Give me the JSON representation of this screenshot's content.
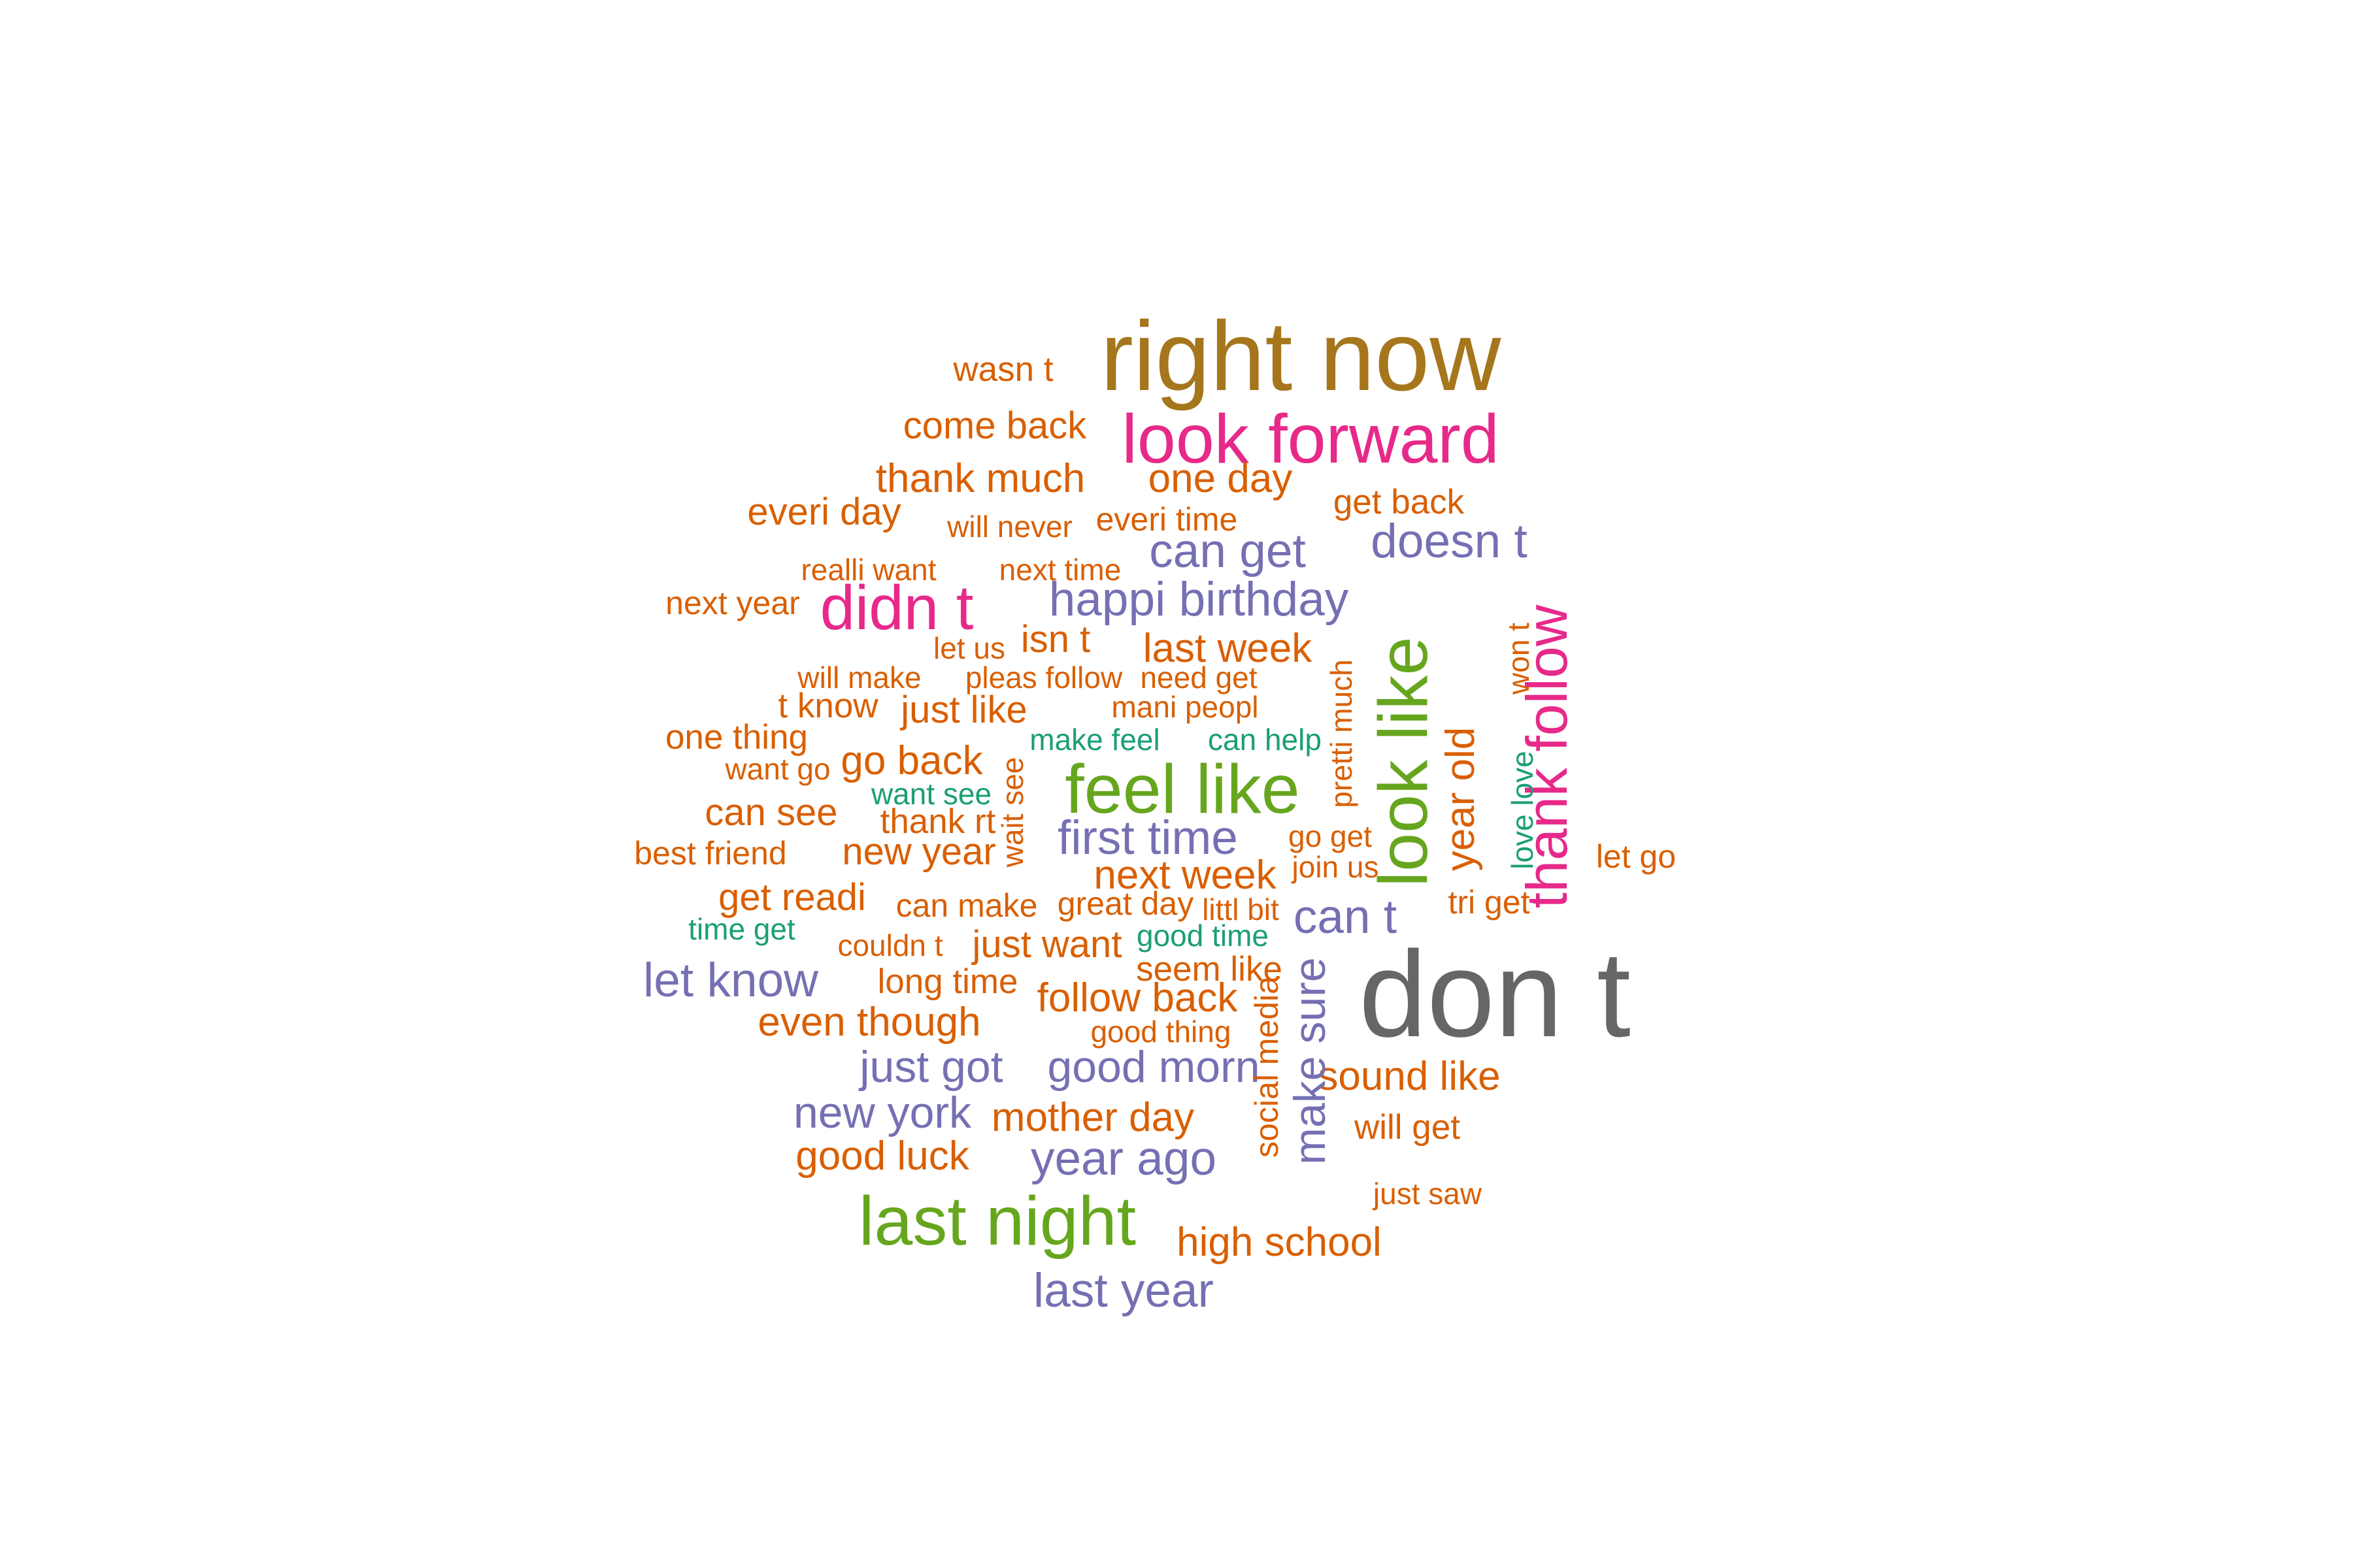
{
  "palette": {
    "orange": "#D95F02",
    "pink": "#E7298A",
    "purple": "#7570B3",
    "green": "#66A61E",
    "gold": "#A6761D",
    "teal": "#1B9E77",
    "gray": "#666666"
  },
  "words": [
    {
      "text": "right now",
      "color": "gold"
    },
    {
      "text": "wasn t",
      "color": "orange"
    },
    {
      "text": "look forward",
      "color": "pink"
    },
    {
      "text": "come back",
      "color": "orange"
    },
    {
      "text": "thank much",
      "color": "orange"
    },
    {
      "text": "one day",
      "color": "orange"
    },
    {
      "text": "get back",
      "color": "orange"
    },
    {
      "text": "everi day",
      "color": "orange"
    },
    {
      "text": "will never",
      "color": "orange"
    },
    {
      "text": "everi time",
      "color": "orange"
    },
    {
      "text": "can get",
      "color": "purple"
    },
    {
      "text": "doesn t",
      "color": "purple"
    },
    {
      "text": "realli want",
      "color": "orange"
    },
    {
      "text": "next time",
      "color": "orange"
    },
    {
      "text": "next year",
      "color": "orange"
    },
    {
      "text": "didn t",
      "color": "pink"
    },
    {
      "text": "happi birthday",
      "color": "purple"
    },
    {
      "text": "isn t",
      "color": "orange"
    },
    {
      "text": "let us",
      "color": "orange"
    },
    {
      "text": "last week",
      "color": "orange"
    },
    {
      "text": "will make",
      "color": "orange"
    },
    {
      "text": "pleas follow",
      "color": "orange"
    },
    {
      "text": "need get",
      "color": "orange"
    },
    {
      "text": "t know",
      "color": "orange"
    },
    {
      "text": "just like",
      "color": "orange"
    },
    {
      "text": "mani peopl",
      "color": "orange"
    },
    {
      "text": "one thing",
      "color": "orange"
    },
    {
      "text": "make feel",
      "color": "teal"
    },
    {
      "text": "can help",
      "color": "teal"
    },
    {
      "text": "go back",
      "color": "orange"
    },
    {
      "text": "want go",
      "color": "orange"
    },
    {
      "text": "feel like",
      "color": "green"
    },
    {
      "text": "want see",
      "color": "teal"
    },
    {
      "text": "can see",
      "color": "orange"
    },
    {
      "text": "thank rt",
      "color": "orange"
    },
    {
      "text": "first time",
      "color": "purple"
    },
    {
      "text": "best friend",
      "color": "orange"
    },
    {
      "text": "new year",
      "color": "orange"
    },
    {
      "text": "go get",
      "color": "orange"
    },
    {
      "text": "join us",
      "color": "orange"
    },
    {
      "text": "next week",
      "color": "orange"
    },
    {
      "text": "let go",
      "color": "orange"
    },
    {
      "text": "get readi",
      "color": "orange"
    },
    {
      "text": "can make",
      "color": "orange"
    },
    {
      "text": "great day",
      "color": "orange"
    },
    {
      "text": "littl bit",
      "color": "orange"
    },
    {
      "text": "can t",
      "color": "purple"
    },
    {
      "text": "tri get",
      "color": "orange"
    },
    {
      "text": "time get",
      "color": "teal"
    },
    {
      "text": "couldn t",
      "color": "orange"
    },
    {
      "text": "just want",
      "color": "orange"
    },
    {
      "text": "good time",
      "color": "teal"
    },
    {
      "text": "seem like",
      "color": "orange"
    },
    {
      "text": "let know",
      "color": "purple"
    },
    {
      "text": "long time",
      "color": "orange"
    },
    {
      "text": "follow back",
      "color": "orange"
    },
    {
      "text": "don t",
      "color": "gray"
    },
    {
      "text": "even though",
      "color": "orange"
    },
    {
      "text": "good thing",
      "color": "orange"
    },
    {
      "text": "just got",
      "color": "purple"
    },
    {
      "text": "good morn",
      "color": "purple"
    },
    {
      "text": "sound like",
      "color": "orange"
    },
    {
      "text": "new york",
      "color": "purple"
    },
    {
      "text": "mother day",
      "color": "orange"
    },
    {
      "text": "will get",
      "color": "orange"
    },
    {
      "text": "good luck",
      "color": "orange"
    },
    {
      "text": "year ago",
      "color": "purple"
    },
    {
      "text": "just saw",
      "color": "orange"
    },
    {
      "text": "last night",
      "color": "green"
    },
    {
      "text": "high school",
      "color": "orange"
    },
    {
      "text": "last year",
      "color": "purple"
    },
    {
      "text": "look like",
      "color": "green"
    },
    {
      "text": "thank follow",
      "color": "pink"
    },
    {
      "text": "year old",
      "color": "orange"
    },
    {
      "text": "won t",
      "color": "orange"
    },
    {
      "text": "love love",
      "color": "teal"
    },
    {
      "text": "pretti much",
      "color": "orange"
    },
    {
      "text": "wait see",
      "color": "orange"
    },
    {
      "text": "make sure",
      "color": "purple"
    },
    {
      "text": "social media",
      "color": "orange"
    }
  ]
}
